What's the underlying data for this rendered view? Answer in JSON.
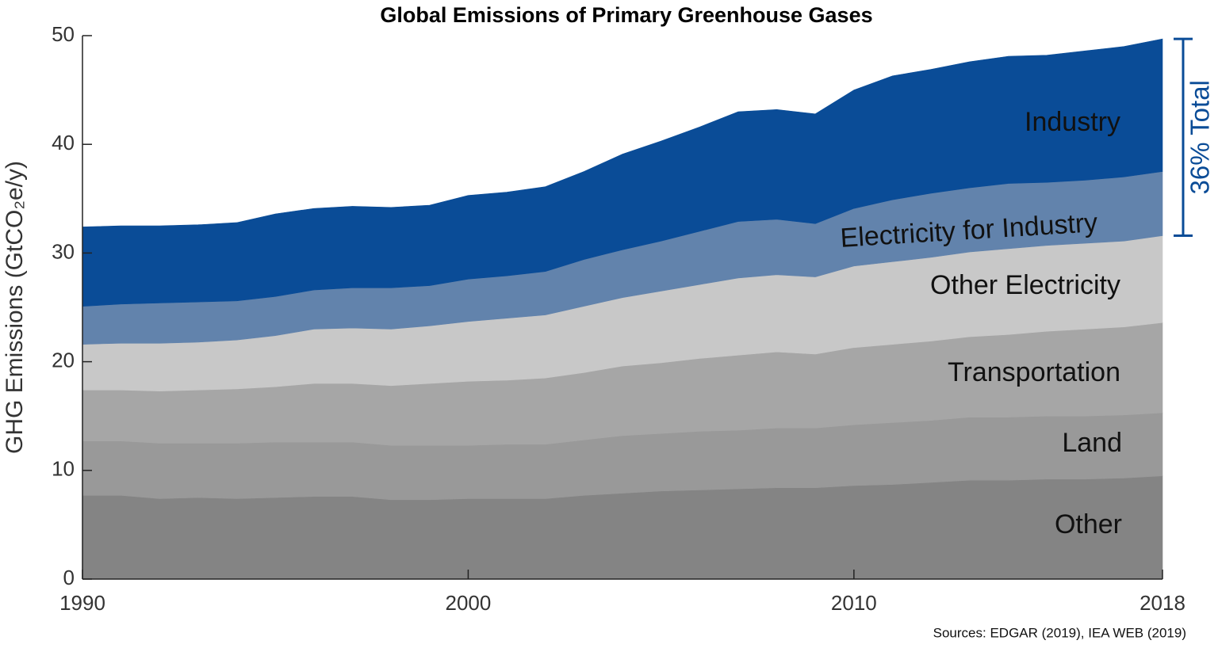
{
  "chart_data": {
    "type": "stacked_area",
    "title": "Global Emissions of Primary Greenhouse Gases",
    "y_label": "GHG Emissions (GtCO₂e/y)",
    "annotation": "36% Total",
    "source": "Sources: EDGAR (2019), IEA WEB (2019)",
    "x": [
      1990,
      1991,
      1992,
      1993,
      1994,
      1995,
      1996,
      1997,
      1998,
      1999,
      2000,
      2001,
      2002,
      2003,
      2004,
      2005,
      2006,
      2007,
      2008,
      2009,
      2010,
      2011,
      2012,
      2013,
      2014,
      2015,
      2016,
      2017,
      2018
    ],
    "xlim": [
      1990,
      2018
    ],
    "xticks": [
      1990,
      2000,
      2010,
      2018
    ],
    "ylim": [
      0,
      50
    ],
    "yticks": [
      0,
      10,
      20,
      30,
      40,
      50
    ],
    "series": [
      {
        "name": "Other",
        "color": "#848484",
        "values": [
          7.7,
          7.7,
          7.4,
          7.5,
          7.4,
          7.5,
          7.6,
          7.6,
          7.3,
          7.3,
          7.4,
          7.4,
          7.4,
          7.7,
          7.9,
          8.1,
          8.2,
          8.3,
          8.4,
          8.4,
          8.6,
          8.7,
          8.9,
          9.1,
          9.1,
          9.2,
          9.2,
          9.3,
          9.5
        ]
      },
      {
        "name": "Land",
        "color": "#999999",
        "values": [
          5.0,
          5.0,
          5.1,
          5.0,
          5.1,
          5.1,
          5.0,
          5.0,
          5.0,
          5.0,
          4.9,
          5.0,
          5.0,
          5.1,
          5.3,
          5.3,
          5.4,
          5.4,
          5.5,
          5.5,
          5.6,
          5.7,
          5.7,
          5.8,
          5.8,
          5.8,
          5.8,
          5.8,
          5.8
        ]
      },
      {
        "name": "Transportation",
        "color": "#a6a6a6",
        "values": [
          4.7,
          4.7,
          4.8,
          4.9,
          5.0,
          5.1,
          5.4,
          5.4,
          5.5,
          5.7,
          5.9,
          5.9,
          6.1,
          6.2,
          6.4,
          6.5,
          6.7,
          6.9,
          7.0,
          6.8,
          7.1,
          7.2,
          7.3,
          7.4,
          7.6,
          7.8,
          8.0,
          8.1,
          8.3
        ]
      },
      {
        "name": "Other Electricity",
        "color": "#c8c8c8",
        "values": [
          4.2,
          4.3,
          4.4,
          4.4,
          4.5,
          4.7,
          5.0,
          5.1,
          5.2,
          5.3,
          5.5,
          5.7,
          5.8,
          6.1,
          6.3,
          6.6,
          6.8,
          7.1,
          7.1,
          7.1,
          7.5,
          7.6,
          7.7,
          7.8,
          7.9,
          7.9,
          7.9,
          7.9,
          8.0
        ]
      },
      {
        "name": "Electricity for Industry",
        "color": "#6283ac",
        "values": [
          3.5,
          3.6,
          3.7,
          3.7,
          3.6,
          3.6,
          3.6,
          3.7,
          3.8,
          3.7,
          3.9,
          3.9,
          4.0,
          4.3,
          4.4,
          4.6,
          4.9,
          5.2,
          5.1,
          4.9,
          5.3,
          5.7,
          5.9,
          5.9,
          6.0,
          5.8,
          5.8,
          5.9,
          5.9
        ]
      },
      {
        "name": "Industry",
        "color": "#0a4c97",
        "values": [
          7.3,
          7.2,
          7.1,
          7.1,
          7.2,
          7.6,
          7.5,
          7.5,
          7.4,
          7.4,
          7.7,
          7.7,
          7.8,
          8.1,
          8.8,
          9.2,
          9.6,
          10.1,
          10.1,
          10.1,
          10.9,
          11.4,
          11.4,
          11.6,
          11.7,
          11.7,
          11.9,
          12.0,
          12.2
        ]
      }
    ]
  }
}
